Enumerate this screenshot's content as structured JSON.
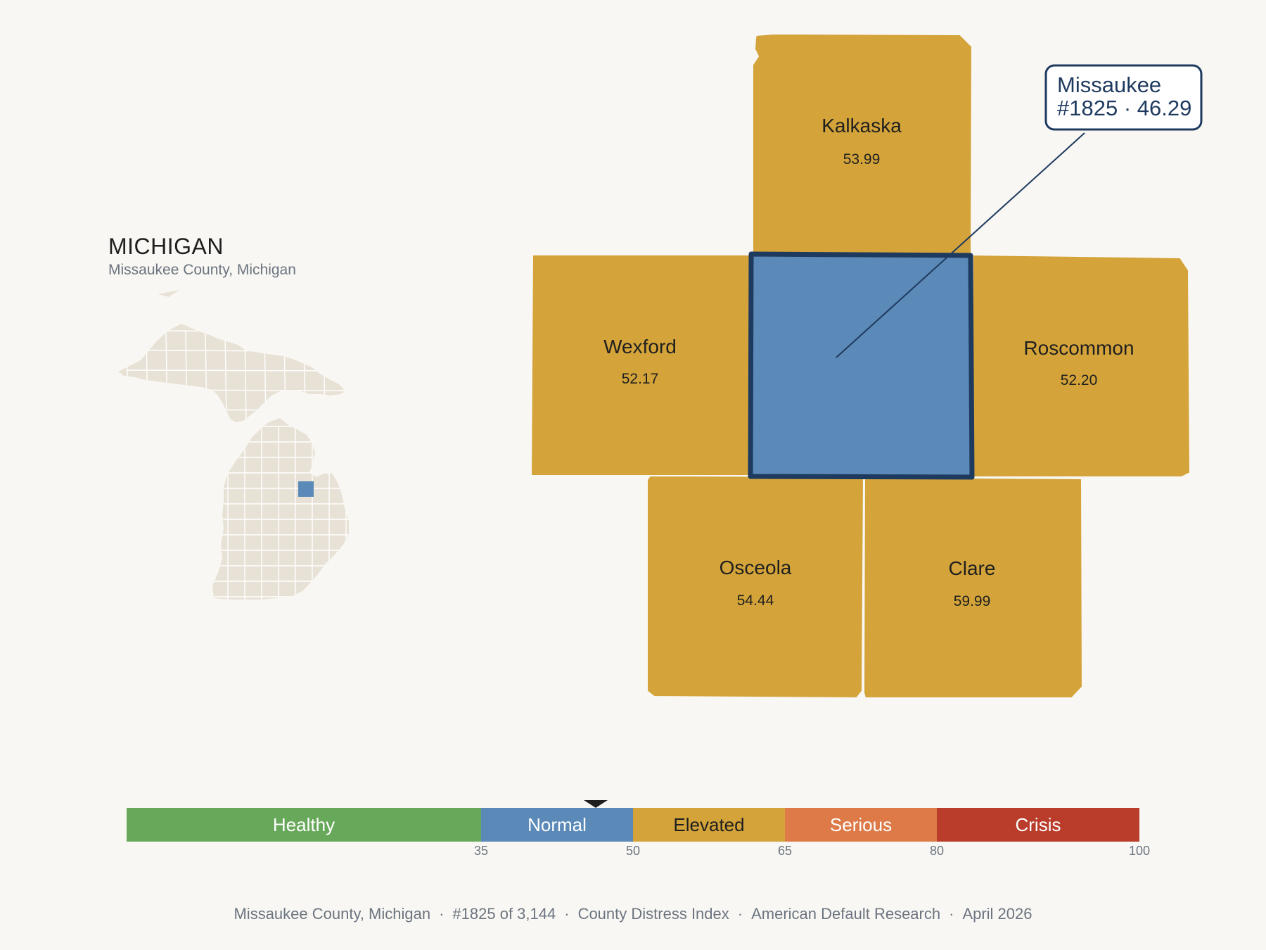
{
  "state": {
    "title": "MICHIGAN",
    "subtitle": "Missaukee County, Michigan"
  },
  "counties": {
    "kalkaska": {
      "name": "Kalkaska",
      "value": "53.99",
      "color": "#d4a43a"
    },
    "wexford": {
      "name": "Wexford",
      "value": "52.17",
      "color": "#d4a43a"
    },
    "roscommon": {
      "name": "Roscommon",
      "value": "52.20",
      "color": "#d4a43a"
    },
    "osceola": {
      "name": "Osceola",
      "value": "54.44",
      "color": "#d4a43a"
    },
    "clare": {
      "name": "Clare",
      "value": "59.99",
      "color": "#d4a43a"
    },
    "missaukee": {
      "name": "Missaukee",
      "value": "46.29",
      "rank": "#1825",
      "color": "#5b89b8",
      "border": "#1e3a5f"
    }
  },
  "callout": {
    "line1": "Missaukee",
    "line2": "#1825 · 46.29"
  },
  "scale": {
    "min": 0,
    "max": 100,
    "marker_value": 46.29,
    "bands": [
      {
        "label": "Healthy",
        "from": 0,
        "to": 35,
        "color": "#68a85a"
      },
      {
        "label": "Normal",
        "from": 35,
        "to": 50,
        "color": "#5b89b8"
      },
      {
        "label": "Elevated",
        "from": 50,
        "to": 65,
        "color": "#d4a43a"
      },
      {
        "label": "Serious",
        "from": 65,
        "to": 80,
        "color": "#dd7a48"
      },
      {
        "label": "Crisis",
        "from": 80,
        "to": 100,
        "color": "#ba3d2c"
      }
    ],
    "ticks": [
      "35",
      "50",
      "65",
      "80",
      "100"
    ]
  },
  "footer": {
    "county": "Missaukee County, Michigan",
    "rank": "#1825 of 3,144",
    "index": "County Distress Index",
    "source": "American Default Research",
    "date": "April 2026",
    "separator": "·"
  },
  "colors": {
    "state_fill": "#e8e2d6",
    "state_stroke": "#ffffff",
    "highlight": "#5b89b8"
  }
}
